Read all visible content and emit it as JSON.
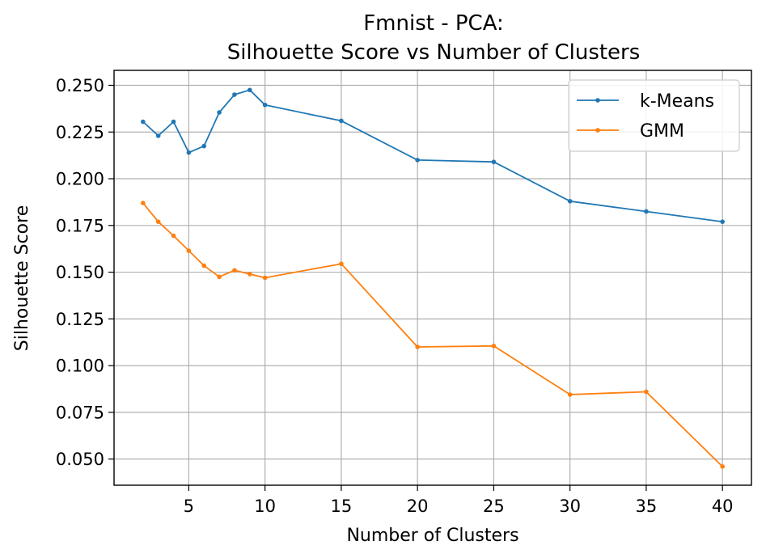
{
  "chart_data": {
    "type": "line",
    "title": "Fmnist - PCA:",
    "subtitle": "Silhouette Score vs Number of Clusters",
    "xlabel": "Number of Clusters",
    "ylabel": "Silhouette Score",
    "xlim": [
      0.1,
      41.9
    ],
    "ylim": [
      0.036,
      0.258
    ],
    "xticks": [
      5,
      10,
      15,
      20,
      25,
      30,
      35,
      40
    ],
    "yticks": [
      0.05,
      0.075,
      0.1,
      0.125,
      0.15,
      0.175,
      0.2,
      0.225,
      0.25
    ],
    "ytick_labels": [
      "0.050",
      "0.075",
      "0.100",
      "0.125",
      "0.150",
      "0.175",
      "0.200",
      "0.225",
      "0.250"
    ],
    "grid": true,
    "legend_position": "top-right",
    "x": [
      2,
      3,
      4,
      5,
      6,
      7,
      8,
      9,
      10,
      15,
      20,
      25,
      30,
      35,
      40
    ],
    "series": [
      {
        "name": "k-Means",
        "color": "#1f77b4",
        "values": [
          0.2305,
          0.223,
          0.2305,
          0.214,
          0.2175,
          0.2355,
          0.245,
          0.2475,
          0.2395,
          0.231,
          0.21,
          0.209,
          0.188,
          0.1825,
          0.177
        ]
      },
      {
        "name": "GMM",
        "color": "#ff7f0e",
        "values": [
          0.187,
          0.177,
          0.1695,
          0.1615,
          0.1535,
          0.1475,
          0.151,
          0.149,
          0.147,
          0.1545,
          0.11,
          0.1105,
          0.0845,
          0.086,
          0.046
        ]
      }
    ]
  }
}
